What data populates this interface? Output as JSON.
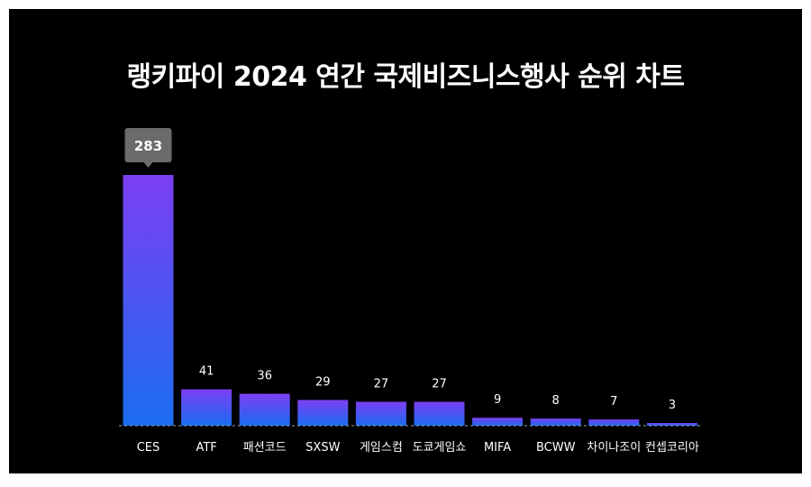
{
  "chart_data": {
    "type": "bar",
    "title": "랭키파이 2024 연간 국제비즈니스행사 순위 차트",
    "categories": [
      "CES",
      "ATF",
      "패션코드",
      "SXSW",
      "게임스컴",
      "도쿄게임쇼",
      "MIFA",
      "BCWW",
      "차이나조이",
      "컨셉코리아"
    ],
    "values": [
      283,
      41,
      36,
      29,
      27,
      27,
      9,
      8,
      7,
      3
    ],
    "highlight_index": 0,
    "highlight_label": "283",
    "xlabel": "",
    "ylabel": "",
    "ylim": [
      0,
      283
    ],
    "grid": false,
    "colors": {
      "bar_top": "#7b3ff2",
      "bar_bottom": "#1a6cf0",
      "background": "#000000",
      "text": "#ffffff",
      "tooltip": "#6b6b6b"
    }
  }
}
